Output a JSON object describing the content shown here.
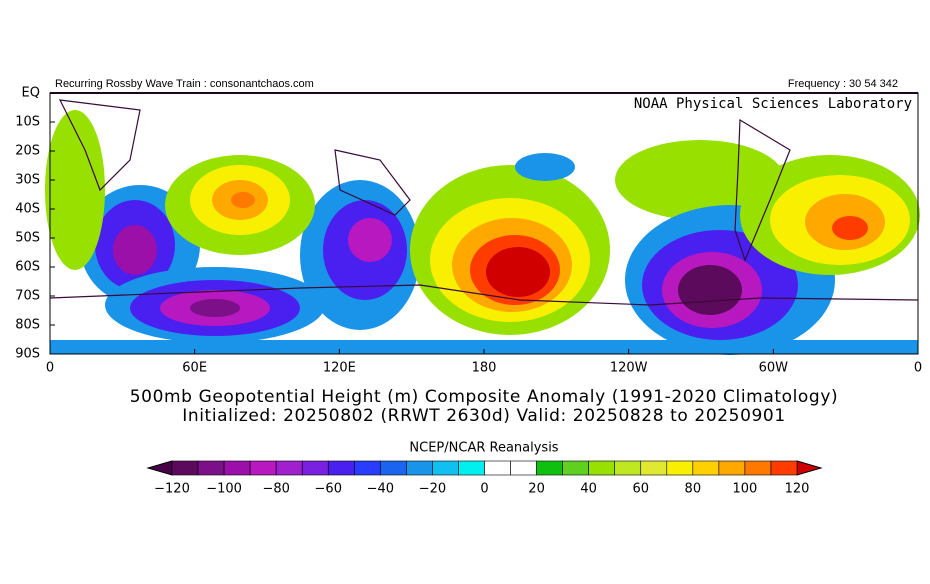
{
  "header": {
    "left": "Recurring Rossby Wave Train : consonantchaos.com",
    "right": "Frequency : 30 54 342",
    "lab": "NOAA Physical Sciences Laboratory"
  },
  "map": {
    "lat_labels": [
      "EQ",
      "10S",
      "20S",
      "30S",
      "40S",
      "50S",
      "60S",
      "70S",
      "80S",
      "90S"
    ],
    "lon_labels": [
      "0",
      "60E",
      "120E",
      "180",
      "120W",
      "60W",
      "0"
    ]
  },
  "title": {
    "line1": "500mb Geopotential Height (m) Composite Anomaly (1991-2020 Climatology)",
    "line2": "Initialized: 20250802 (RRWT 2630d) Valid: 20250828 to 20250901",
    "source": "NCEP/NCAR Reanalysis"
  },
  "colorbar": {
    "labels": [
      "−120",
      "−100",
      "−80",
      "−60",
      "−40",
      "−20",
      "0",
      "20",
      "40",
      "60",
      "80",
      "100",
      "120"
    ],
    "low_color": "#4a0048",
    "high_color": "#d00000",
    "colors": [
      "#5c0a5c",
      "#7c1088",
      "#9a10a8",
      "#b818c0",
      "#a020d0",
      "#7a20e0",
      "#4a20f0",
      "#2a3cff",
      "#1a64f0",
      "#1a94e8",
      "#10c0f0",
      "#00f0f0",
      "#ffffff",
      "#ffffff",
      "#10c010",
      "#60d020",
      "#98e000",
      "#c0e820",
      "#e0e830",
      "#f8f000",
      "#ffd000",
      "#ffa800",
      "#ff7800",
      "#ff3c00"
    ]
  }
}
